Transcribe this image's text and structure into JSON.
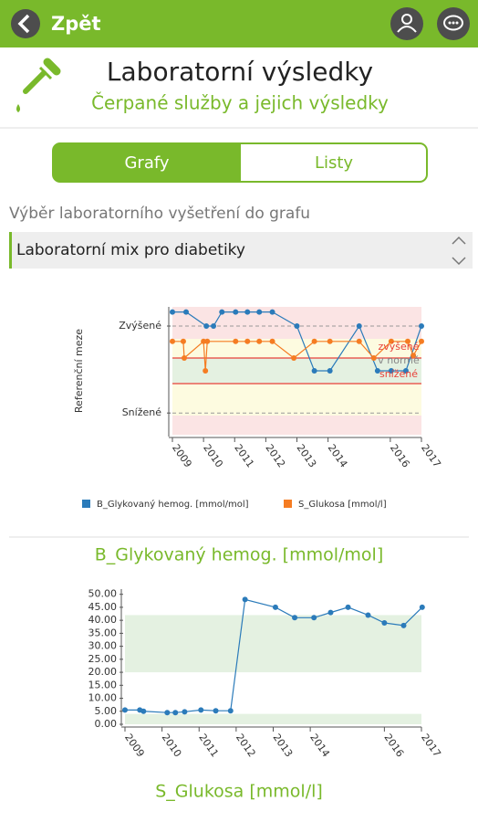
{
  "header": {
    "back": "Zpět"
  },
  "title": "Laboratorní výsledky",
  "subtitle": "Čerpané služby a jejich výsledky",
  "tabs": [
    "Grafy",
    "Listy"
  ],
  "select_label": "Výběr laboratorního vyšetření do grafu",
  "select_value": "Laboratorní mix pro diabetiky",
  "chart_data": [
    {
      "type": "line",
      "ylabel": "Referenční meze",
      "xlim": [
        2009,
        2017
      ],
      "xticks": [
        2009,
        2010,
        2011,
        2012,
        2013,
        2014,
        2016,
        2017
      ],
      "ylim": [
        0,
        10
      ],
      "yticks": [
        {
          "value": 8.5,
          "label": "Zvýšené"
        },
        {
          "value": 1.7,
          "label": "Snížené"
        }
      ],
      "grid": true,
      "bands": [
        {
          "from": 7.5,
          "to": 10,
          "color": "#fbe4e4"
        },
        {
          "from": 6,
          "to": 7.5,
          "color": "#fdfbe0"
        },
        {
          "from": 4,
          "to": 6,
          "color": "#e4f1e1"
        },
        {
          "from": 1.5,
          "to": 4,
          "color": "#fdfbe0"
        },
        {
          "from": 0,
          "to": 1.5,
          "color": "#fbe4e4"
        }
      ],
      "limits": [
        6,
        4
      ],
      "limit_color": "#e8413a",
      "annotations": [
        "zvýšené",
        "v normě",
        "snížené"
      ],
      "legend": "bottom",
      "series": [
        {
          "name": "B_Glykovaný hemog. [mmol/mol]",
          "color": "#2b7bba",
          "x": [
            2009.0,
            2009.44,
            2010.09,
            2010.32,
            2010.59,
            2011.03,
            2011.41,
            2011.79,
            2012.21,
            2013.0,
            2013.56,
            2014.06,
            2015.0,
            2015.59,
            2016.03,
            2016.5,
            2017.0
          ],
          "values": [
            9.6,
            9.6,
            8.5,
            8.5,
            9.6,
            9.6,
            9.6,
            9.6,
            9.6,
            8.5,
            5,
            5,
            8.5,
            5,
            5,
            5,
            8.5
          ]
        },
        {
          "name": "S_Glukosa [mmol/l]",
          "color": "#f57c22",
          "x": [
            2009.0,
            2009.35,
            2009.38,
            2010.0,
            2010.06,
            2010.12,
            2011.03,
            2011.41,
            2011.79,
            2012.21,
            2012.9,
            2013.56,
            2014.06,
            2015.0,
            2015.47,
            2016.03,
            2016.56,
            2016.74,
            2017.0
          ],
          "values": [
            7.3,
            7.3,
            6,
            7.3,
            5,
            7.3,
            7.3,
            7.3,
            7.3,
            7.3,
            6,
            7.3,
            7.3,
            7.3,
            6,
            7.3,
            7.3,
            6.2,
            7.3
          ]
        }
      ]
    },
    {
      "type": "line",
      "title": "B_Glykovaný hemog. [mmol/mol]",
      "xlim": [
        2009,
        2017
      ],
      "xticks": [
        2009,
        2010,
        2011,
        2012,
        2013,
        2014,
        2016,
        2017
      ],
      "ylim": [
        0,
        52
      ],
      "yticks": [
        {
          "value": 0,
          "label": "0.00"
        },
        {
          "value": 5,
          "label": "5.00"
        },
        {
          "value": 10,
          "label": "10.00"
        },
        {
          "value": 15,
          "label": "15.00"
        },
        {
          "value": 20,
          "label": "20.00"
        },
        {
          "value": 25,
          "label": "25.00"
        },
        {
          "value": 30,
          "label": "30.00"
        },
        {
          "value": 35,
          "label": "35.00"
        },
        {
          "value": 40,
          "label": "40.00"
        },
        {
          "value": 45,
          "label": "45.00"
        },
        {
          "value": 50,
          "label": "50.00"
        }
      ],
      "grid": false,
      "bands": [
        {
          "from": 20,
          "to": 42,
          "color": "#e4f1e1"
        },
        {
          "from": 0,
          "to": 4,
          "color": "#e4f1e1"
        }
      ],
      "series": [
        {
          "color": "#2b7bba",
          "x": [
            2009.0,
            2009.4,
            2009.5,
            2010.14,
            2010.36,
            2010.61,
            2011.05,
            2011.45,
            2011.85,
            2012.24,
            2013.06,
            2013.58,
            2014.1,
            2014.55,
            2015.02,
            2015.56,
            2016.0,
            2016.52,
            2017.02
          ],
          "values": [
            5.5,
            5.5,
            5,
            4.5,
            4.5,
            4.8,
            5.5,
            5.2,
            5.2,
            48,
            45,
            41,
            41,
            43,
            45,
            42,
            39,
            38,
            45
          ]
        }
      ]
    }
  ],
  "next_chart_title": "S_Glukosa [mmol/l]"
}
